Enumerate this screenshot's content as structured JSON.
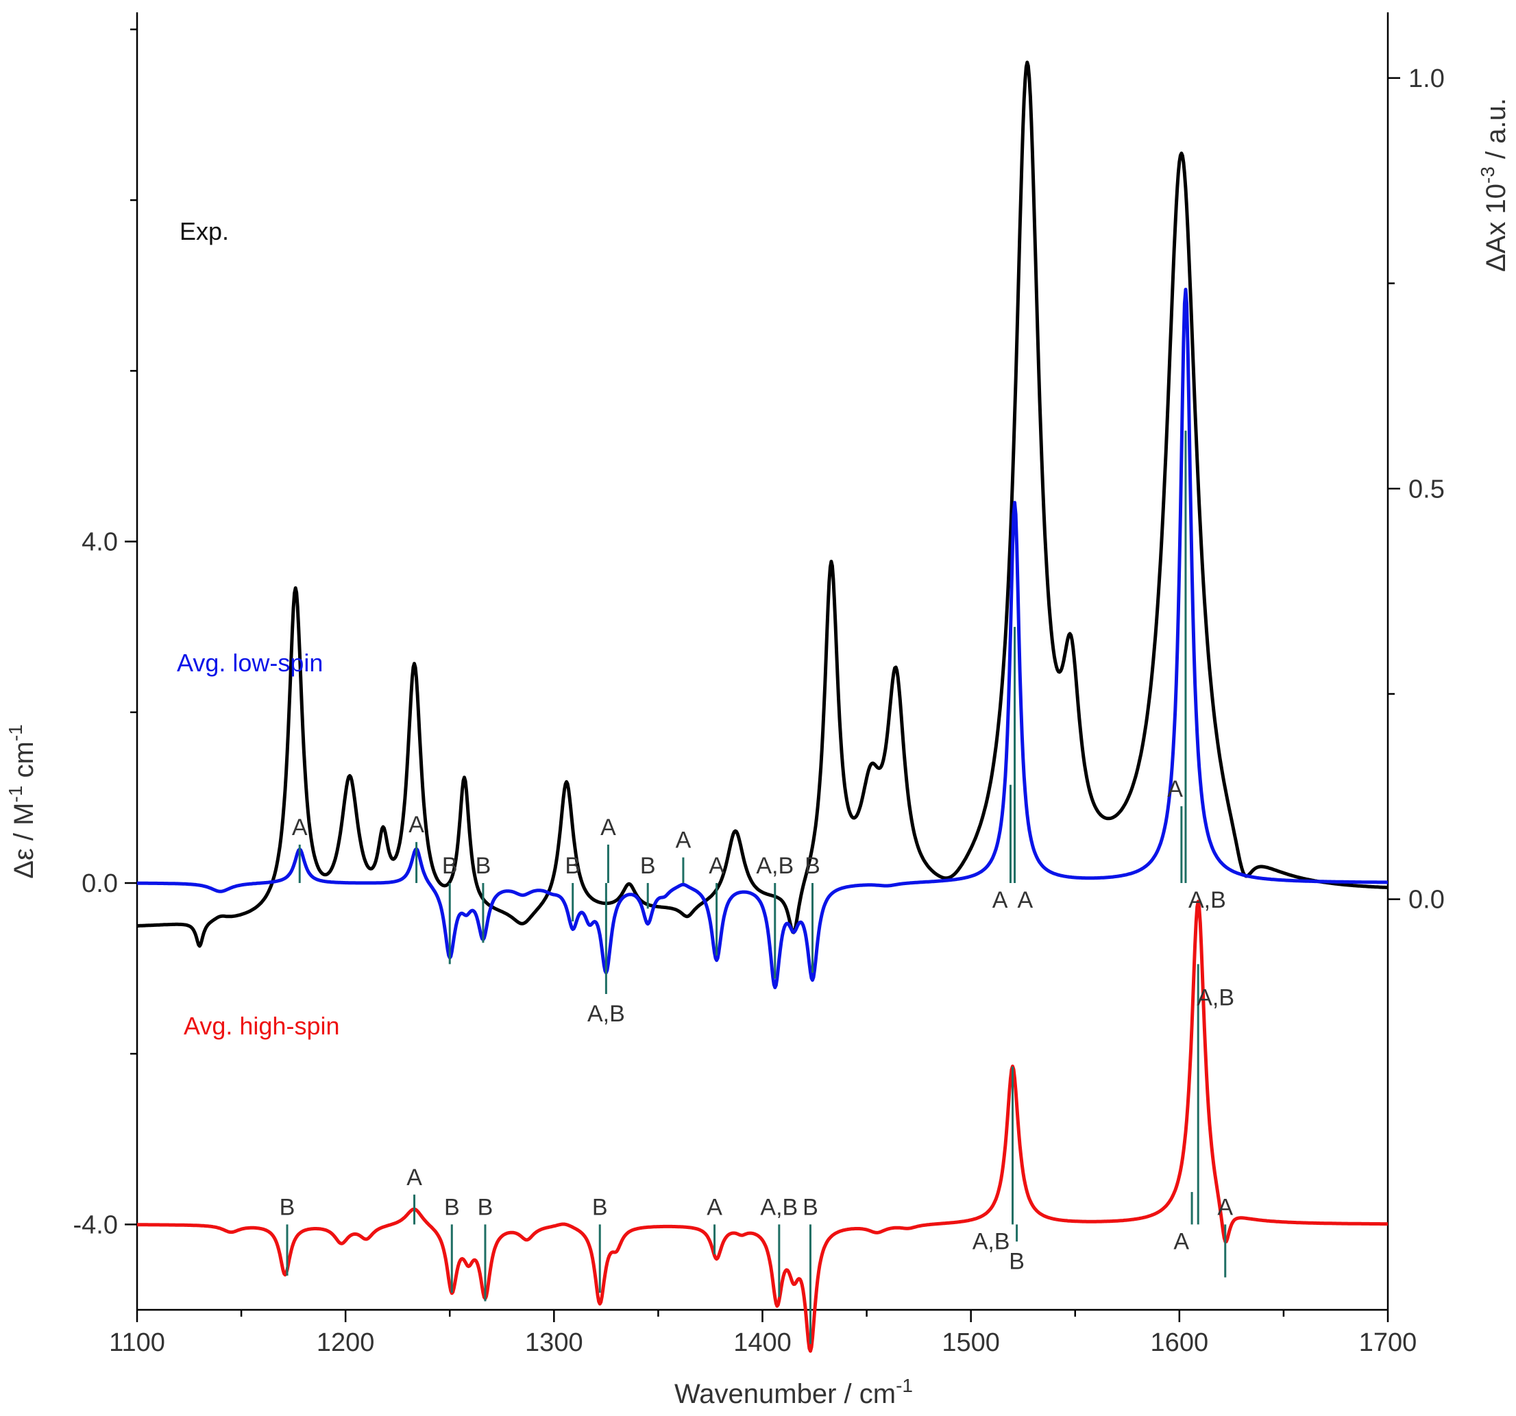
{
  "chart_data": {
    "type": "line",
    "xlabel": "Wavenumber / cm",
    "xlabel_sup": "-1",
    "ylabel_left": "Δε / M",
    "ylabel_left_sup": "-1",
    "ylabel_left_tail": " cm",
    "ylabel_left_sup2": "-1",
    "ylabel_right": "ΔAx 10",
    "ylabel_right_sup": "-3",
    "ylabel_right_tail": " / a.u.",
    "xlim": [
      1100,
      1700
    ],
    "ylim_left": [
      -5.0,
      10.2
    ],
    "ylim_right": [
      -0.5,
      1.08
    ],
    "x_ticks": [
      1100,
      1200,
      1300,
      1400,
      1500,
      1600,
      1700
    ],
    "x_tick_labels": [
      "1100",
      "1200",
      "1300",
      "1400",
      "1500",
      "1600",
      "1700"
    ],
    "y_left_ticks": [
      -4.0,
      0.0,
      4.0
    ],
    "y_left_tick_labels": [
      "-4.0",
      "0.0",
      "4.0"
    ],
    "y_right_ticks": [
      0.0,
      0.5,
      1.0
    ],
    "y_right_tick_labels": [
      "0.0",
      "0.5",
      "1.0"
    ],
    "grid": false,
    "series": [
      {
        "name": "Exp.",
        "color": "#000000",
        "axis": "right",
        "peaks": [
          [
            1100,
            -0.03,
            0
          ],
          [
            1112,
            0.0,
            3
          ],
          [
            1130,
            -0.03,
            2
          ],
          [
            1140,
            0.005,
            4
          ],
          [
            1176,
            0.4,
            4
          ],
          [
            1202,
            0.16,
            5
          ],
          [
            1218,
            0.075,
            3
          ],
          [
            1233,
            0.3,
            4
          ],
          [
            1257,
            0.16,
            3
          ],
          [
            1285,
            -0.02,
            6
          ],
          [
            1306,
            0.16,
            4
          ],
          [
            1336,
            0.03,
            4
          ],
          [
            1364,
            -0.015,
            4
          ],
          [
            1387,
            0.09,
            5
          ],
          [
            1415,
            -0.06,
            3
          ],
          [
            1433,
            0.4,
            4
          ],
          [
            1452,
            0.11,
            6
          ],
          [
            1464,
            0.25,
            5
          ],
          [
            1490,
            -0.02,
            10
          ],
          [
            1527,
            1.0,
            7
          ],
          [
            1548,
            0.2,
            5
          ],
          [
            1601,
            0.9,
            9
          ],
          [
            1631,
            -0.05,
            5
          ],
          [
            1700,
            0.0,
            0
          ]
        ]
      },
      {
        "name": "Avg. low-spin",
        "color": "#0a14e8",
        "axis": "left",
        "baseline": 0.0,
        "peaks": [
          [
            1140,
            -0.1,
            6
          ],
          [
            1178,
            0.4,
            3
          ],
          [
            1234,
            0.44,
            3
          ],
          [
            1250,
            -0.84,
            3
          ],
          [
            1258,
            -0.2,
            3
          ],
          [
            1266,
            -0.6,
            3
          ],
          [
            1285,
            -0.1,
            5
          ],
          [
            1299,
            -0.05,
            4
          ],
          [
            1309,
            -0.45,
            3
          ],
          [
            1317,
            -0.3,
            3
          ],
          [
            1325,
            -0.98,
            3
          ],
          [
            1345,
            -0.43,
            3
          ],
          [
            1353,
            -0.08,
            3
          ],
          [
            1362,
            0.05,
            3
          ],
          [
            1378,
            -0.88,
            3
          ],
          [
            1406,
            -1.15,
            3
          ],
          [
            1415,
            -0.35,
            3
          ],
          [
            1424,
            -1.07,
            3
          ],
          [
            1460,
            -0.03,
            6
          ],
          [
            1521,
            4.45,
            2.8
          ],
          [
            1603,
            6.95,
            3.2
          ]
        ],
        "sticks": [
          {
            "x": 1178,
            "y": 0.45,
            "label": "A",
            "pos": "top"
          },
          {
            "x": 1234,
            "y": 0.48,
            "label": "A",
            "pos": "top"
          },
          {
            "x": 1250,
            "y": -0.95,
            "label": "B",
            "pos": "top"
          },
          {
            "x": 1266,
            "y": -0.7,
            "label": "B",
            "pos": "top"
          },
          {
            "x": 1309,
            "y": -0.45,
            "label": "B",
            "pos": "top"
          },
          {
            "x": 1325,
            "y": -1.3,
            "label": "A,B",
            "pos": "bottom"
          },
          {
            "x": 1326,
            "y": 0.45,
            "label": "A",
            "pos": "top"
          },
          {
            "x": 1345,
            "y": -0.3,
            "label": "B",
            "pos": "top"
          },
          {
            "x": 1362,
            "y": 0.3,
            "label": "A",
            "pos": "top"
          },
          {
            "x": 1378,
            "y": -0.85,
            "label": "A",
            "pos": "top"
          },
          {
            "x": 1406,
            "y": -1.12,
            "label": "A,B",
            "pos": "top"
          },
          {
            "x": 1424,
            "y": -1.05,
            "label": "B",
            "pos": "top"
          },
          {
            "x": 1519,
            "y": 1.15,
            "label": "A",
            "pos": "bottomleft"
          },
          {
            "x": 1521,
            "y": 3.0,
            "label": "A",
            "pos": "bottomright"
          },
          {
            "x": 1601,
            "y": 0.9,
            "label": "A",
            "pos": "topleft"
          },
          {
            "x": 1603,
            "y": 5.3,
            "label": "A,B",
            "pos": "bottomright"
          }
        ]
      },
      {
        "name": "Avg. high-spin",
        "color": "#ee1111",
        "axis": "left",
        "baseline": -4.0,
        "peaks": [
          [
            1145,
            -0.08,
            5
          ],
          [
            1171,
            -0.58,
            3
          ],
          [
            1198,
            -0.2,
            4
          ],
          [
            1210,
            -0.15,
            4
          ],
          [
            1233,
            0.22,
            5
          ],
          [
            1251,
            -0.75,
            3
          ],
          [
            1259,
            -0.3,
            3
          ],
          [
            1267,
            -0.8,
            3
          ],
          [
            1287,
            -0.15,
            4
          ],
          [
            1305,
            0.05,
            5
          ],
          [
            1322,
            -0.9,
            3
          ],
          [
            1330,
            -0.2,
            3
          ],
          [
            1378,
            -0.38,
            3
          ],
          [
            1390,
            -0.06,
            3
          ],
          [
            1407,
            -0.85,
            3
          ],
          [
            1415,
            -0.42,
            3
          ],
          [
            1423,
            -1.4,
            3
          ],
          [
            1455,
            -0.08,
            5
          ],
          [
            1470,
            -0.04,
            5
          ],
          [
            1520,
            1.85,
            3.5
          ],
          [
            1609,
            3.8,
            3.8
          ],
          [
            1622,
            -0.5,
            2.5
          ]
        ],
        "sticks": [
          {
            "x": 1172,
            "y": -0.6,
            "label": "B",
            "pos": "top"
          },
          {
            "x": 1233,
            "y": 0.35,
            "label": "A",
            "pos": "top"
          },
          {
            "x": 1251,
            "y": -0.8,
            "label": "B",
            "pos": "top"
          },
          {
            "x": 1267,
            "y": -0.9,
            "label": "B",
            "pos": "top"
          },
          {
            "x": 1322,
            "y": -0.8,
            "label": "B",
            "pos": "top"
          },
          {
            "x": 1377,
            "y": -0.35,
            "label": "A",
            "pos": "top"
          },
          {
            "x": 1408,
            "y": -0.85,
            "label": "A,B",
            "pos": "top"
          },
          {
            "x": 1423,
            "y": -1.4,
            "label": "B",
            "pos": "top"
          },
          {
            "x": 1520,
            "y": 1.85,
            "label": "A,B",
            "pos": "bottomleft"
          },
          {
            "x": 1522,
            "y": -0.2,
            "label": "B",
            "pos": "bottom"
          },
          {
            "x": 1606,
            "y": 0.38,
            "label": "A",
            "pos": "bottomleft"
          },
          {
            "x": 1609,
            "y": 3.05,
            "label": "A,B",
            "pos": "topright"
          },
          {
            "x": 1622,
            "y": -0.62,
            "label": "A",
            "pos": "top"
          }
        ]
      }
    ]
  }
}
